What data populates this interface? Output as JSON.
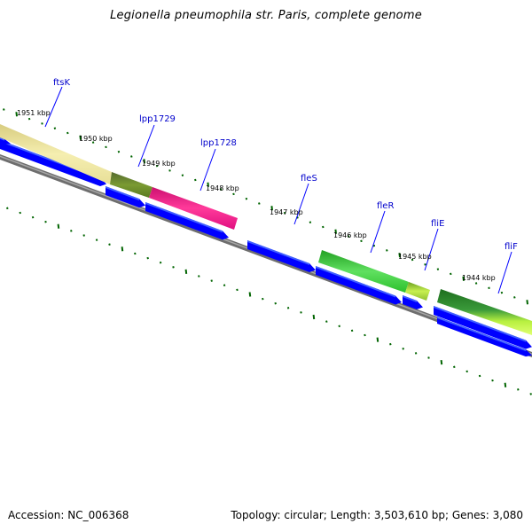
{
  "title": "Legionella pneumophila str. Paris, complete genome",
  "footer": {
    "accession": "Accession: NC_006368",
    "stats": "Topology: circular; Length: 3,503,610 bp; Genes: 3,080"
  },
  "colors": {
    "backbone": "#808080",
    "cds": "#0000ff",
    "ticks": "#006400",
    "gene_label": "#0000cc",
    "ftsK": "#f0e68c",
    "lpp1729": "#6b8e23",
    "lpp1728": "#ff1493",
    "fleR": "#32cd32",
    "fliE": "#9acd32",
    "fliF": "#2e8b2e"
  },
  "genes": [
    {
      "name": "ftsK",
      "color": "#f0e68c"
    },
    {
      "name": "lpp1729",
      "color": "#6b8e23"
    },
    {
      "name": "lpp1728",
      "color": "#ff1493"
    },
    {
      "name": "fleS",
      "color": ""
    },
    {
      "name": "fleR",
      "color": "#32cd32"
    },
    {
      "name": "fliE",
      "color": "#9acd32"
    },
    {
      "name": "fliF",
      "color": "#2e8b2e"
    }
  ],
  "scale_labels": [
    "1951 kbp",
    "1950 kbp",
    "1949 kbp",
    "1948 kbp",
    "1947 kbp",
    "1946 kbp",
    "1945 kbp",
    "1944 kbp"
  ]
}
